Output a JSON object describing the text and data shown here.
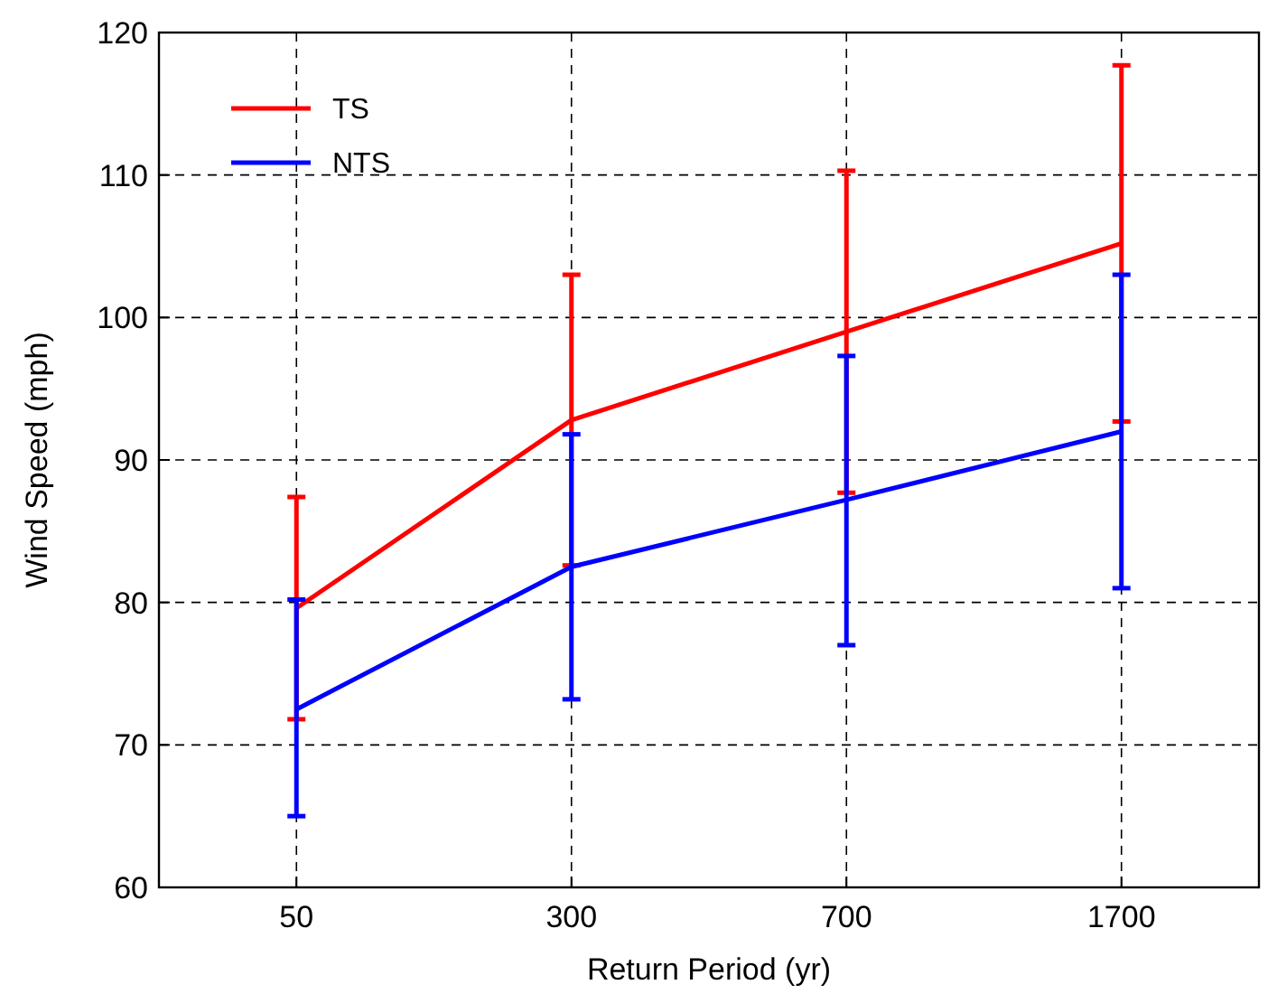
{
  "chart_data": {
    "type": "line",
    "xlabel": "Return Period (yr)",
    "ylabel": "Wind Speed (mph)",
    "categories": [
      "50",
      "300",
      "700",
      "1700"
    ],
    "ylim": [
      60,
      120
    ],
    "yticks": [
      60,
      70,
      80,
      90,
      100,
      110,
      120
    ],
    "grid": true,
    "legend": "top left",
    "marker": "none",
    "line_style": "solid",
    "series": [
      {
        "name": "TS",
        "color": "#ff0000",
        "values": [
          79.6,
          92.8,
          99,
          105.2
        ],
        "errors": [
          [
            71.8,
            87.4
          ],
          [
            82.6,
            103
          ],
          [
            87.7,
            110.3
          ],
          [
            92.7,
            117.7
          ]
        ]
      },
      {
        "name": "NTS",
        "color": "#0000ff",
        "values": [
          72.5,
          82.5,
          87.2,
          92
        ],
        "errors": [
          [
            65,
            80.2
          ],
          [
            73.2,
            91.8
          ],
          [
            77,
            97.3
          ],
          [
            81,
            103
          ]
        ]
      }
    ]
  }
}
